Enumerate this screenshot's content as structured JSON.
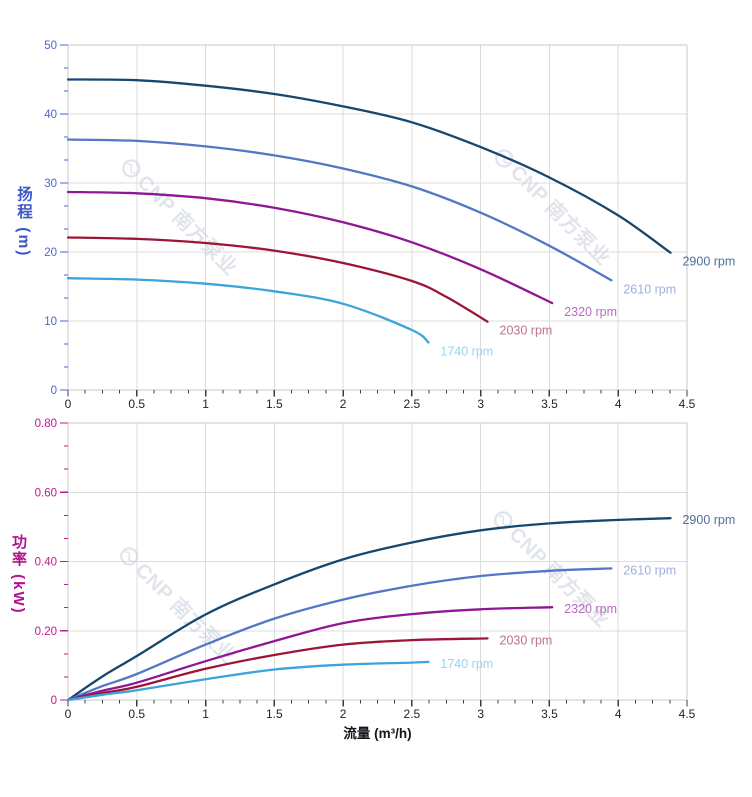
{
  "watermark": {
    "text": "CNP 南方泵业"
  },
  "colors": {
    "grid": "#dcdcdc",
    "plot_border": "#c9c9c9",
    "x_tick": "#3b3b44",
    "x_tick_label": "#23232b",
    "head_axis_accent": "#4a66cf",
    "power_axis_accent": "#c2188c"
  },
  "chart_data": [
    {
      "type": "line",
      "title": "",
      "xlabel": "",
      "ylabel": "扬程 (m)",
      "xlim": [
        0,
        4.5
      ],
      "ylim": [
        0,
        50
      ],
      "grid": true,
      "legend_position": "end-of-curve",
      "x_ticks": [
        0,
        0.5,
        1,
        1.5,
        2,
        2.5,
        3,
        3.5,
        4,
        4.5
      ],
      "x_tick_labels": [
        "0",
        "0.5",
        "1",
        "1.5",
        "2",
        "2.5",
        "3",
        "3.5",
        "4",
        "4.5"
      ],
      "y_ticks": [
        0,
        10,
        20,
        30,
        40,
        50
      ],
      "y_tick_labels": [
        "0",
        "10",
        "20",
        "30",
        "40",
        "50"
      ],
      "axis_color": "#4a66cf",
      "series": [
        {
          "name": "2900 rpm",
          "color": "#16486f",
          "label_color": "#4e6f99",
          "points": [
            [
              0,
              45
            ],
            [
              0.5,
              44.9
            ],
            [
              1,
              44.1
            ],
            [
              1.5,
              42.9
            ],
            [
              2,
              41.1
            ],
            [
              2.5,
              38.8
            ],
            [
              3,
              35.2
            ],
            [
              3.5,
              30.8
            ],
            [
              4,
              25.3
            ],
            [
              4.38,
              19.9
            ]
          ]
        },
        {
          "name": "2610 rpm",
          "color": "#5377c5",
          "label_color": "#9dafdf",
          "points": [
            [
              0,
              36.3
            ],
            [
              0.5,
              36.1
            ],
            [
              1,
              35.3
            ],
            [
              1.5,
              34.0
            ],
            [
              2,
              32.1
            ],
            [
              2.5,
              29.5
            ],
            [
              3,
              25.7
            ],
            [
              3.5,
              20.9
            ],
            [
              3.95,
              15.9
            ]
          ]
        },
        {
          "name": "2320 rpm",
          "color": "#8f1694",
          "label_color": "#b66dbe",
          "points": [
            [
              0,
              28.7
            ],
            [
              0.5,
              28.5
            ],
            [
              1,
              27.8
            ],
            [
              1.5,
              26.4
            ],
            [
              2,
              24.3
            ],
            [
              2.5,
              21.4
            ],
            [
              3,
              17.5
            ],
            [
              3.52,
              12.6
            ]
          ]
        },
        {
          "name": "2030 rpm",
          "color": "#9c1535",
          "label_color": "#bc7389",
          "points": [
            [
              0,
              22.1
            ],
            [
              0.5,
              21.9
            ],
            [
              1,
              21.3
            ],
            [
              1.5,
              20.2
            ],
            [
              2,
              18.4
            ],
            [
              2.5,
              15.8
            ],
            [
              2.75,
              13.5
            ],
            [
              3.05,
              9.9
            ]
          ]
        },
        {
          "name": "1740 rpm",
          "color": "#3ba4dc",
          "label_color": "#96d4f3",
          "points": [
            [
              0,
              16.2
            ],
            [
              0.5,
              16.0
            ],
            [
              1,
              15.4
            ],
            [
              1.5,
              14.3
            ],
            [
              2,
              12.5
            ],
            [
              2.5,
              8.7
            ],
            [
              2.62,
              6.9
            ]
          ]
        }
      ]
    },
    {
      "type": "line",
      "title": "",
      "xlabel": "流量 (m³/h)",
      "ylabel": "功率 (kW)",
      "xlim": [
        0,
        4.5
      ],
      "ylim": [
        0,
        0.8
      ],
      "grid": true,
      "legend_position": "end-of-curve",
      "x_ticks": [
        0,
        0.5,
        1,
        1.5,
        2,
        2.5,
        3,
        3.5,
        4,
        4.5
      ],
      "x_tick_labels": [
        "0",
        "0.5",
        "1",
        "1.5",
        "2",
        "2.5",
        "3",
        "3.5",
        "4",
        "4.5"
      ],
      "y_ticks": [
        0,
        0.2,
        0.4,
        0.6,
        0.8
      ],
      "y_tick_labels": [
        "0",
        "0.20",
        "0.40",
        "0.60",
        "0.80"
      ],
      "axis_color": "#c2188c",
      "series": [
        {
          "name": "2900 rpm",
          "color": "#16486f",
          "label_color": "#4e6f99",
          "points": [
            [
              0,
              0
            ],
            [
              0.25,
              0.068
            ],
            [
              0.5,
              0.127
            ],
            [
              1,
              0.247
            ],
            [
              1.5,
              0.334
            ],
            [
              2,
              0.406
            ],
            [
              2.5,
              0.455
            ],
            [
              3,
              0.49
            ],
            [
              3.5,
              0.51
            ],
            [
              4,
              0.52
            ],
            [
              4.38,
              0.525
            ]
          ]
        },
        {
          "name": "2610 rpm",
          "color": "#5377c5",
          "label_color": "#9dafdf",
          "points": [
            [
              0,
              0
            ],
            [
              0.25,
              0.04
            ],
            [
              0.5,
              0.075
            ],
            [
              1,
              0.16
            ],
            [
              1.5,
              0.235
            ],
            [
              2,
              0.29
            ],
            [
              2.5,
              0.33
            ],
            [
              3,
              0.358
            ],
            [
              3.5,
              0.373
            ],
            [
              3.95,
              0.38
            ]
          ]
        },
        {
          "name": "2320 rpm",
          "color": "#8f1694",
          "label_color": "#b66dbe",
          "points": [
            [
              0,
              0
            ],
            [
              0.25,
              0.027
            ],
            [
              0.5,
              0.05
            ],
            [
              1,
              0.112
            ],
            [
              1.5,
              0.17
            ],
            [
              2,
              0.222
            ],
            [
              2.5,
              0.248
            ],
            [
              3,
              0.262
            ],
            [
              3.52,
              0.268
            ]
          ]
        },
        {
          "name": "2030 rpm",
          "color": "#9c1535",
          "label_color": "#bc7389",
          "points": [
            [
              0,
              0
            ],
            [
              0.25,
              0.02
            ],
            [
              0.5,
              0.038
            ],
            [
              1,
              0.09
            ],
            [
              1.5,
              0.13
            ],
            [
              2,
              0.16
            ],
            [
              2.5,
              0.173
            ],
            [
              3.05,
              0.178
            ]
          ]
        },
        {
          "name": "1740 rpm",
          "color": "#3ba4dc",
          "label_color": "#96d4f3",
          "points": [
            [
              0,
              0
            ],
            [
              0.25,
              0.015
            ],
            [
              0.5,
              0.028
            ],
            [
              1,
              0.06
            ],
            [
              1.5,
              0.088
            ],
            [
              2,
              0.102
            ],
            [
              2.5,
              0.108
            ],
            [
              2.62,
              0.11
            ]
          ]
        }
      ]
    }
  ]
}
